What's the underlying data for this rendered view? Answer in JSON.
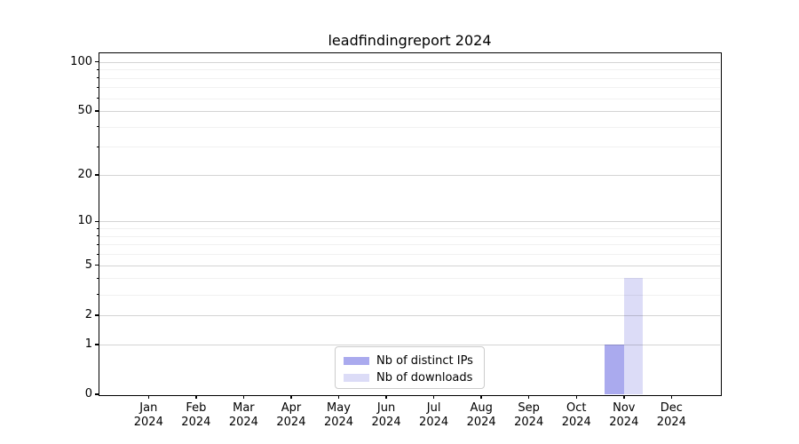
{
  "chart_data": {
    "type": "bar",
    "title": "leadfindingreport 2024",
    "xlabel": "",
    "ylabel": "",
    "categories": [
      "Jan 2024",
      "Feb 2024",
      "Mar 2024",
      "Apr 2024",
      "May 2024",
      "Jun 2024",
      "Jul 2024",
      "Aug 2024",
      "Sep 2024",
      "Oct 2024",
      "Nov 2024",
      "Dec 2024"
    ],
    "series": [
      {
        "name": "Nb of distinct IPs",
        "color": "#aaaaee",
        "values": [
          0,
          0,
          0,
          0,
          0,
          0,
          0,
          0,
          0,
          0,
          1,
          0
        ]
      },
      {
        "name": "Nb of downloads",
        "color": "#dcdcf7",
        "values": [
          0,
          0,
          0,
          0,
          0,
          0,
          0,
          0,
          0,
          0,
          4,
          0
        ]
      }
    ],
    "y_axis": {
      "scale": "log1p",
      "tick_values": [
        0,
        1,
        2,
        5,
        10,
        20,
        50,
        100
      ],
      "tick_labels": [
        "0",
        "1",
        "2",
        "5",
        "10",
        "20",
        "50",
        "100"
      ],
      "minor_tick_values": [
        3,
        4,
        6,
        7,
        8,
        9,
        30,
        40,
        60,
        70,
        80,
        90
      ],
      "ymin": 0,
      "ymax": 112
    },
    "grid": "on",
    "legend": {
      "location": "lower center",
      "entries": [
        "Nb of distinct IPs",
        "Nb of downloads"
      ]
    }
  }
}
